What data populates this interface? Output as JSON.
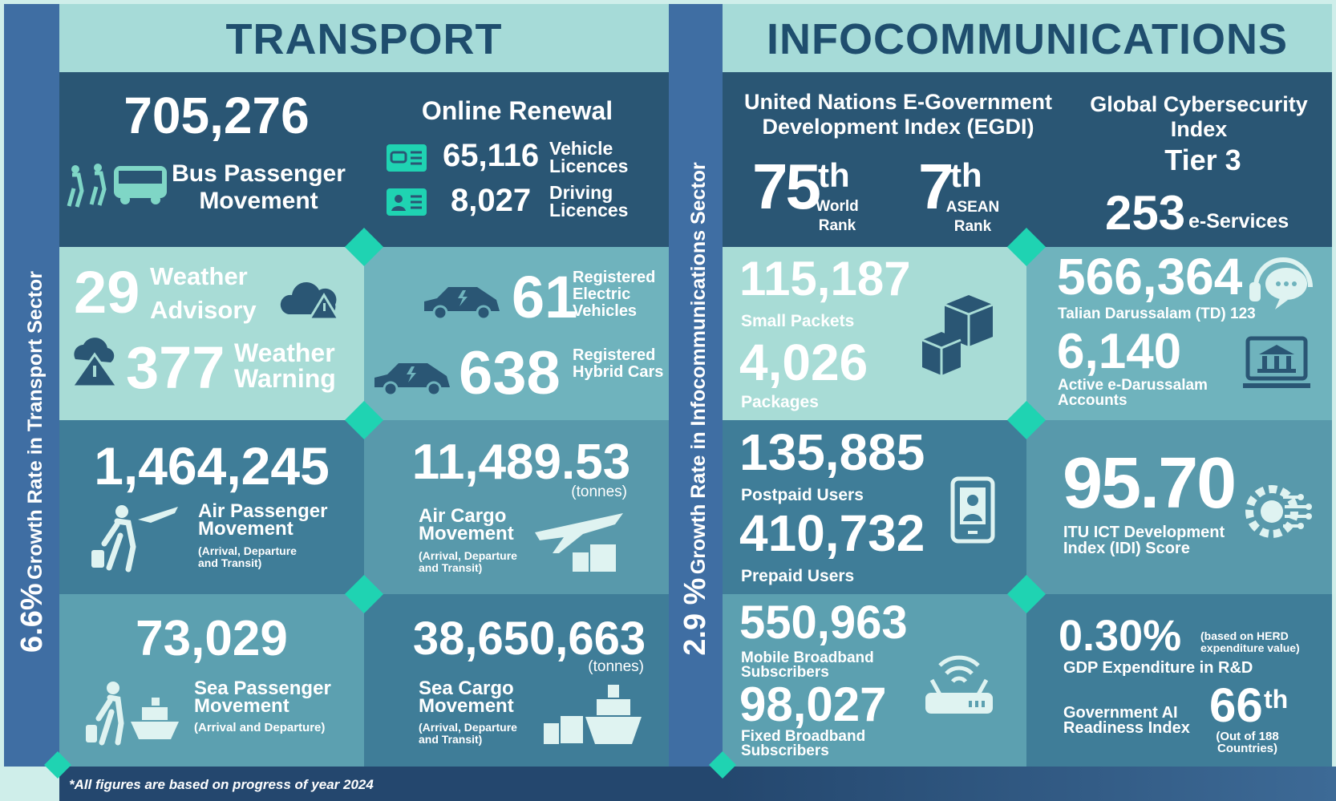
{
  "transport": {
    "title": "TRANSPORT",
    "growth_value": "6.6%",
    "growth_label": "Growth Rate in Transport Sector",
    "bus": {
      "value": "705,276",
      "label": "Bus Passenger Movement"
    },
    "online_renewal": {
      "title": "Online Renewal",
      "items": [
        {
          "value": "65,116",
          "label": "Vehicle Licences"
        },
        {
          "value": "8,027",
          "label": "Driving Licences"
        }
      ]
    },
    "weather": [
      {
        "value": "29",
        "label": "Weather Advisory"
      },
      {
        "value": "377",
        "label": "Weather Warning"
      }
    ],
    "vehicles": [
      {
        "value": "61",
        "label": "Registered Electric Vehicles"
      },
      {
        "value": "638",
        "label": "Registered Hybrid Cars"
      }
    ],
    "air_passenger": {
      "value": "1,464,245",
      "label": "Air Passenger Movement",
      "note": "(Arrival, Departure and Transit)"
    },
    "air_cargo": {
      "value": "11,489.53",
      "unit": "(tonnes)",
      "label": "Air Cargo Movement",
      "note": "(Arrival, Departure and Transit)"
    },
    "sea_passenger": {
      "value": "73,029",
      "label": "Sea Passenger Movement",
      "note": "(Arrival and Departure)"
    },
    "sea_cargo": {
      "value": "38,650,663",
      "unit": "(tonnes)",
      "label": "Sea Cargo Movement",
      "note": "(Arrival, Departure and Transit)"
    }
  },
  "infocommunications": {
    "title": "INFOCOMMUNICATIONS",
    "growth_value": "2.9 %",
    "growth_label": "Growth Rate in Infocommunications Sector",
    "egdi": {
      "title": "United Nations E-Government Development Index (EGDI)",
      "ranks": [
        {
          "value": "75",
          "suffix": "th",
          "label": "World Rank"
        },
        {
          "value": "7",
          "suffix": "th",
          "label": "ASEAN Rank"
        }
      ]
    },
    "gci": {
      "title": "Global Cybersecurity Index",
      "tier": "Tier 3",
      "value": "253",
      "label": "e-Services"
    },
    "postal": [
      {
        "value": "115,187",
        "label": "Small Packets"
      },
      {
        "value": "4,026",
        "label": "Packages"
      }
    ],
    "td": [
      {
        "value": "566,364",
        "label": "Talian Darussalam (TD) 123"
      },
      {
        "value": "6,140",
        "label": "Active e-Darussalam Accounts"
      }
    ],
    "mobile": [
      {
        "value": "135,885",
        "label": "Postpaid Users"
      },
      {
        "value": "410,732",
        "label": "Prepaid Users"
      }
    ],
    "idi": {
      "value": "95.70",
      "label": "ITU ICT Development Index (IDI) Score"
    },
    "broadband": [
      {
        "value": "550,963",
        "label": "Mobile Broadband Subscribers"
      },
      {
        "value": "98,027",
        "label": "Fixed Broadband Subscribers"
      }
    ],
    "rnd": {
      "value": "0.30%",
      "note": "(based on HERD expenditure value)",
      "label": "GDP Expenditure in R&D"
    },
    "ai": {
      "label": "Government AI Readiness Index",
      "value": "66",
      "suffix": "th",
      "note": "(Out of 188 Countries)"
    }
  },
  "footnote": "*All figures are based on progress of year 2024"
}
